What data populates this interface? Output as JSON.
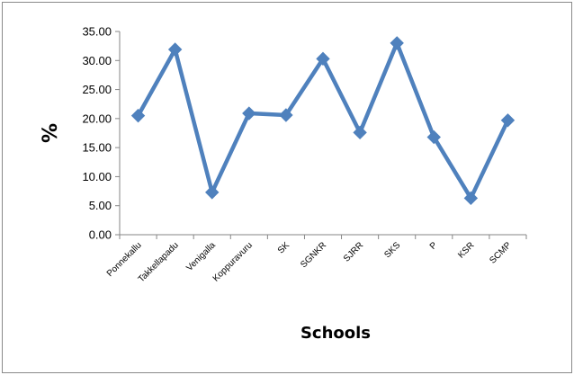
{
  "chart_data": {
    "type": "line",
    "categories": [
      "Ponnekallu",
      "Takkellapadu",
      "Venigalla",
      "Koppuravuru",
      "SK",
      "SGNKR",
      "SJRR",
      "SKS",
      "P",
      "KSR",
      "SCMP"
    ],
    "series": [
      {
        "values": [
          20.5,
          31.9,
          7.3,
          20.9,
          20.6,
          30.3,
          17.6,
          33.0,
          16.8,
          6.3,
          19.7
        ],
        "color": "#4f81bd",
        "marker": "diamond"
      }
    ],
    "xlabel": "Schools",
    "ylabel": "%",
    "ylim": [
      0,
      35
    ],
    "yticks": [
      "0.00",
      "5.00",
      "10.00",
      "15.00",
      "20.00",
      "25.00",
      "30.00",
      "35.00"
    ],
    "grid": false,
    "legend": "none"
  }
}
